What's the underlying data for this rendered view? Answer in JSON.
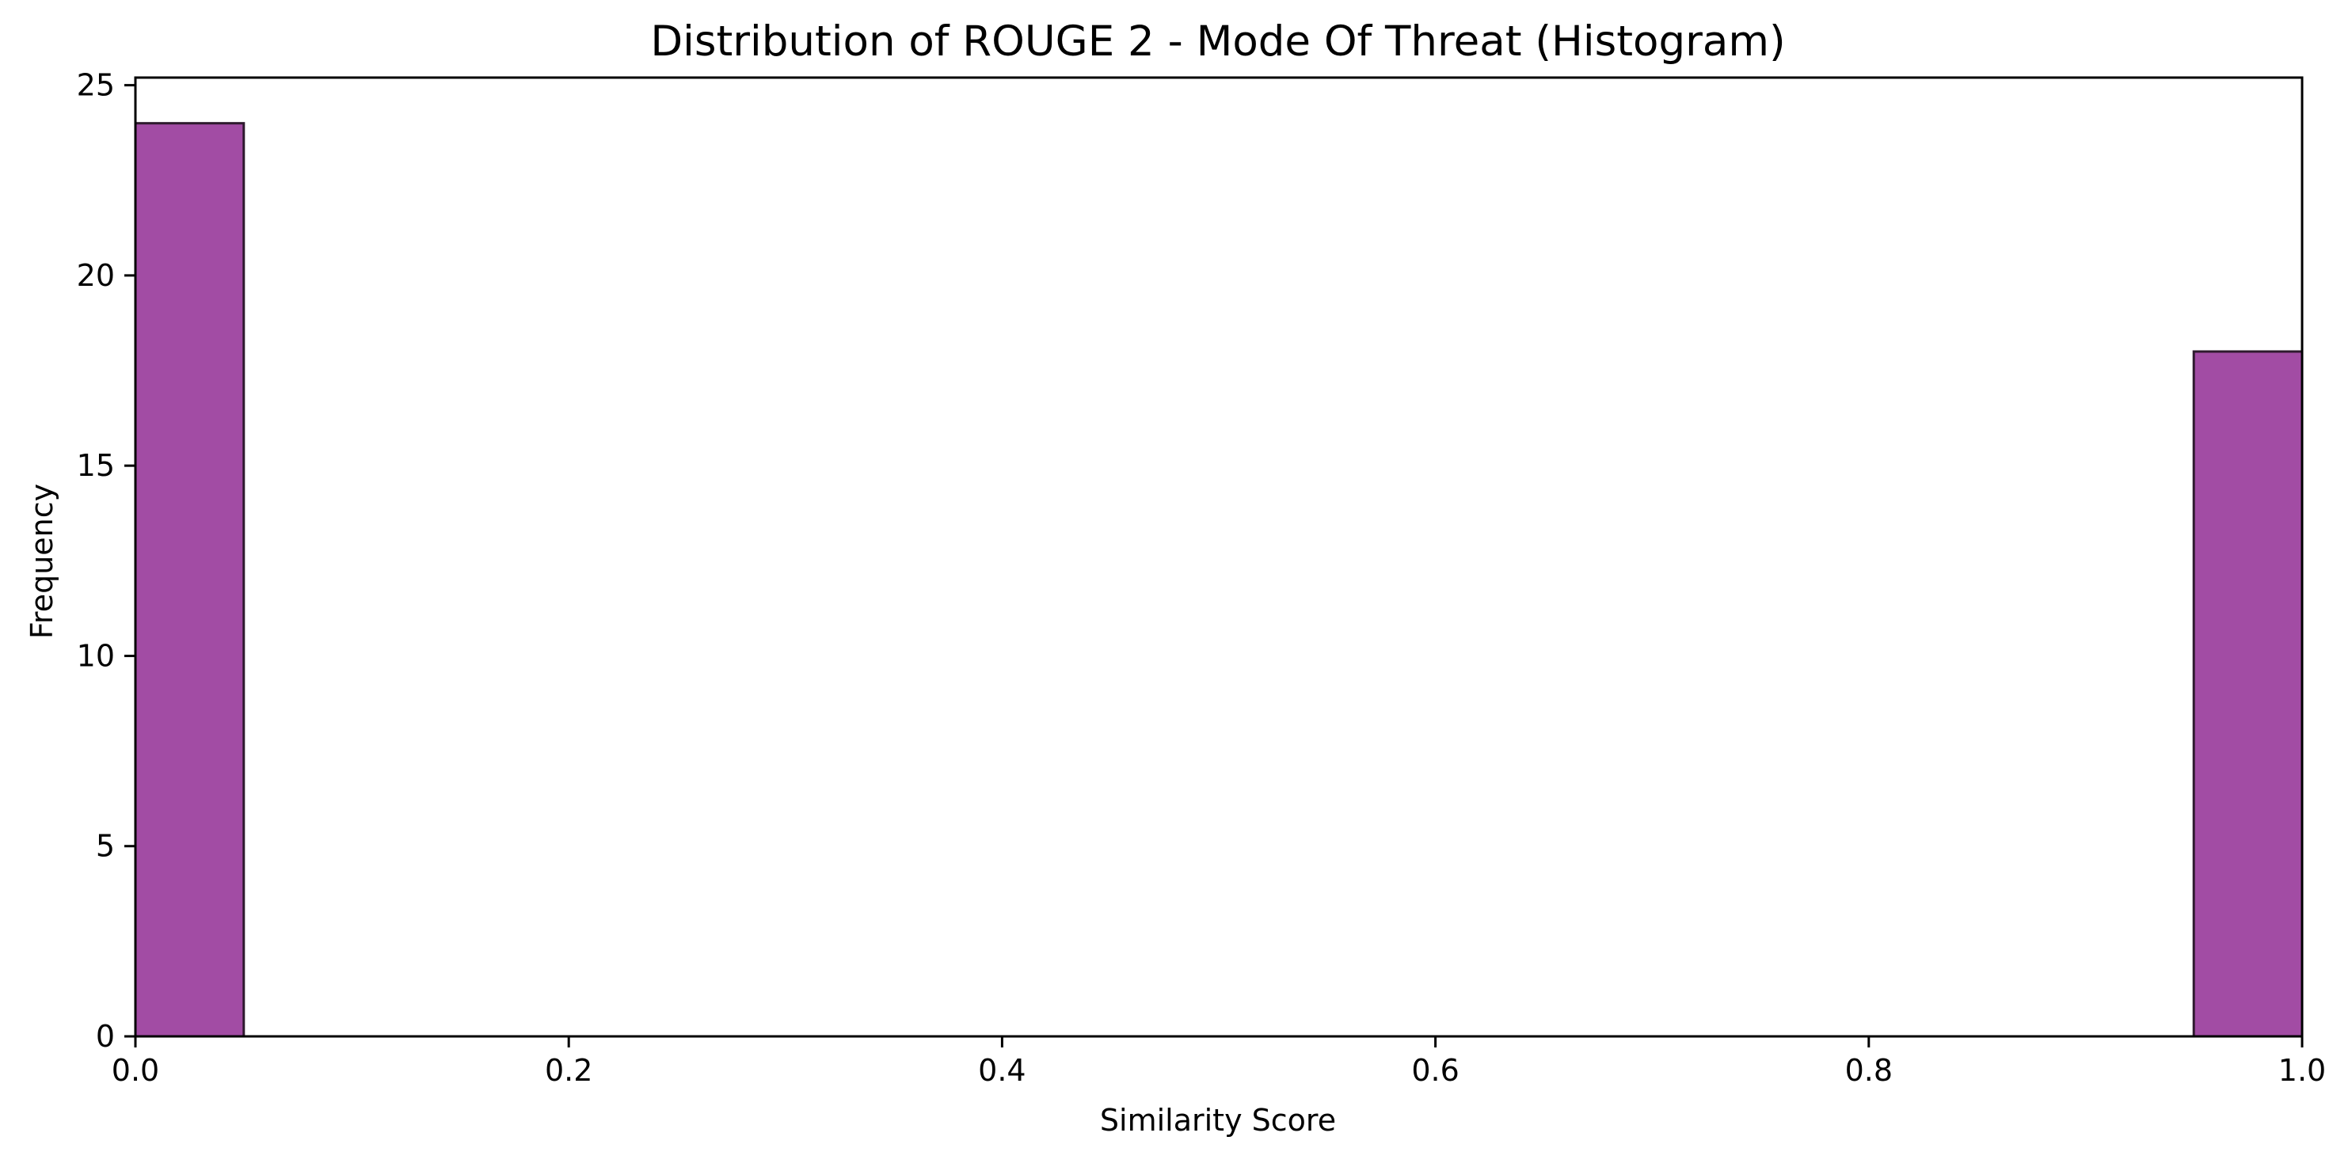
{
  "chart_data": {
    "type": "bar",
    "title": "Distribution of ROUGE 2 - Mode Of Threat (Histogram)",
    "xlabel": "Similarity Score",
    "ylabel": "Frequency",
    "xlim": [
      0,
      1
    ],
    "ylim": [
      0,
      25.2
    ],
    "xticks": [
      0.0,
      0.2,
      0.4,
      0.6,
      0.8,
      1.0
    ],
    "xtick_labels": [
      "0.0",
      "0.2",
      "0.4",
      "0.6",
      "0.8",
      "1.0"
    ],
    "yticks": [
      0,
      5,
      10,
      15,
      20,
      25
    ],
    "ytick_labels": [
      "0",
      "5",
      "10",
      "15",
      "20",
      "25"
    ],
    "bins": [
      {
        "x0": 0.0,
        "x1": 0.05,
        "count": 24
      },
      {
        "x0": 0.95,
        "x1": 1.0,
        "count": 18
      }
    ],
    "bar_color": "#a24ca4",
    "bar_edge_color": "#2e1a2e",
    "grid": false,
    "legend": "none"
  }
}
